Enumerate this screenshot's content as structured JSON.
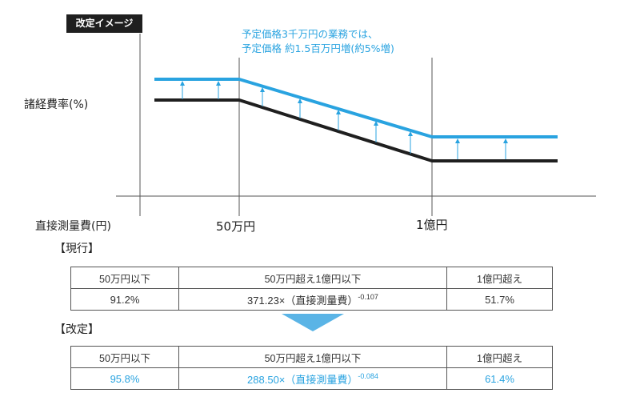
{
  "badge": "改定イメージ",
  "annotation": {
    "line1": "予定価格3千万円の業務では、",
    "line2": "予定価格 約1.5百万円増(約5%増)"
  },
  "chart": {
    "y_label": "諸経費率(%)",
    "x_label": "直接測量費(円)",
    "x_ticks": [
      "50万円",
      "1億円"
    ],
    "colors": {
      "revised": "#29a3e0",
      "current": "#1f1f1f"
    }
  },
  "current": {
    "heading": "【現行】",
    "headers": [
      "50万円以下",
      "50万円超え1億円以下",
      "1億円超え"
    ],
    "values": {
      "low": "91.2%",
      "mid_base": "371.23×（直接測量費）",
      "mid_exp": "-0.107",
      "high": "51.7%"
    }
  },
  "revised": {
    "heading": "【改定】",
    "headers": [
      "50万円以下",
      "50万円超え1億円以下",
      "1億円超え"
    ],
    "values": {
      "low": "95.8%",
      "mid_base": "288.50×（直接測量費）",
      "mid_exp": "-0.084",
      "high": "61.4%"
    }
  }
}
